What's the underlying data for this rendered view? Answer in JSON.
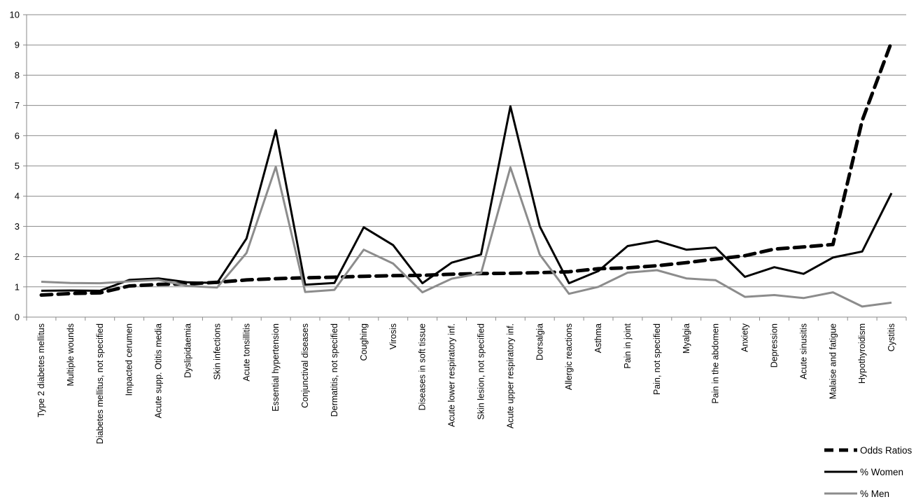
{
  "chart_data": {
    "type": "line",
    "title": "",
    "xlabel": "",
    "ylabel": "",
    "ylim": [
      0,
      10
    ],
    "yticks": [
      0,
      1,
      2,
      3,
      4,
      5,
      6,
      7,
      8,
      9,
      10
    ],
    "grid": "horizontal",
    "legend_position": "bottom-right",
    "categories": [
      "Type 2 diabetes mellitus",
      "Multiple wounds",
      "Diabetes mellitus, not specified",
      "Impacted cerumen",
      "Acute supp. Otitis media",
      "Dyslipidaemia",
      "Skin infections",
      "Acute tonsillitis",
      "Essential hypertension",
      "Conjunctival diseases",
      "Dermatitis, not specified",
      "Coughing",
      "Virosis",
      "Diseases in soft tissue",
      "Acute lower respiratory inf.",
      "Skin lesion, not specified",
      "Acute upper respiratory inf.",
      "Dorsalgia",
      "Allergic reactions",
      "Asthma",
      "Pain in joint",
      "Pain, not specified",
      "Myalgia",
      "Pain in the abdomen",
      "Anxiety",
      "Depression",
      "Acute sinusitis",
      "Malaise and fatigue",
      "Hypothyroidism",
      "Cystitis"
    ],
    "series": [
      {
        "name": "Odds Ratios",
        "style": "dashed",
        "color": "#000000",
        "values": [
          0.73,
          0.78,
          0.8,
          1.03,
          1.08,
          1.1,
          1.15,
          1.23,
          1.27,
          1.3,
          1.32,
          1.35,
          1.37,
          1.38,
          1.42,
          1.44,
          1.45,
          1.47,
          1.5,
          1.6,
          1.63,
          1.7,
          1.8,
          1.92,
          2.03,
          2.25,
          2.32,
          2.4,
          6.5,
          9.1
        ]
      },
      {
        "name": "% Women",
        "style": "solid",
        "color": "#000000",
        "values": [
          0.87,
          0.88,
          0.87,
          1.23,
          1.28,
          1.15,
          1.13,
          2.6,
          6.18,
          1.07,
          1.13,
          2.97,
          2.38,
          1.12,
          1.8,
          2.07,
          6.97,
          3.0,
          1.12,
          1.52,
          2.35,
          2.52,
          2.23,
          2.3,
          1.33,
          1.65,
          1.43,
          1.97,
          2.17,
          4.1
        ]
      },
      {
        "name": "% Men",
        "style": "solid",
        "color": "#8c8c8c",
        "values": [
          1.17,
          1.13,
          1.12,
          1.18,
          1.23,
          1.03,
          0.98,
          2.12,
          4.97,
          0.83,
          0.9,
          2.23,
          1.77,
          0.82,
          1.27,
          1.45,
          4.95,
          2.07,
          0.77,
          1.0,
          1.47,
          1.55,
          1.28,
          1.22,
          0.67,
          0.73,
          0.63,
          0.82,
          0.35,
          0.48
        ]
      }
    ]
  }
}
